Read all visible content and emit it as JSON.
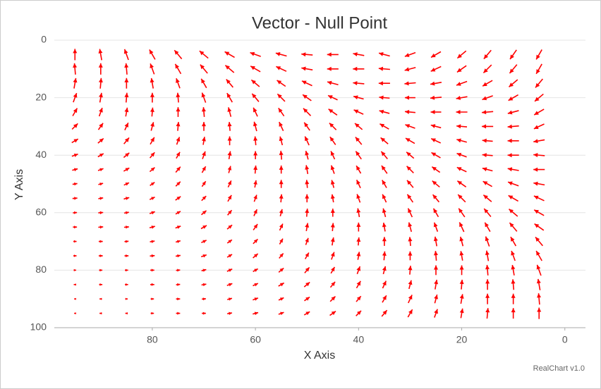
{
  "chart_data": {
    "type": "vector",
    "title": "Vector - Null Point",
    "x_label": "X Axis",
    "y_label": "Y Axis",
    "credit": "RealChart v1.0",
    "color": "#ff0000",
    "grid": true,
    "xlim": [
      99,
      -4
    ],
    "xticks": [
      80,
      60,
      40,
      20,
      0
    ],
    "ylim": [
      0,
      100
    ],
    "yticks": [
      0,
      20,
      40,
      60,
      80,
      100
    ],
    "x": [
      95,
      90,
      85,
      80,
      75,
      70,
      65,
      60,
      55,
      50,
      45,
      40,
      35,
      30,
      25,
      20,
      15,
      10,
      5
    ],
    "y": [
      5,
      10,
      15,
      20,
      25,
      30,
      35,
      40,
      45,
      50,
      55,
      60,
      65,
      70,
      75,
      80,
      85,
      90,
      95
    ],
    "angles": [
      [
        90,
        100,
        110,
        120,
        130,
        140,
        150,
        160,
        165,
        175,
        180,
        170,
        165,
        200,
        210,
        220,
        230,
        235,
        240
      ],
      [
        95,
        90,
        95,
        110,
        120,
        130,
        140,
        150,
        155,
        170,
        180,
        180,
        175,
        195,
        205,
        215,
        225,
        230,
        240
      ],
      [
        80,
        85,
        90,
        100,
        110,
        120,
        130,
        140,
        145,
        155,
        165,
        175,
        180,
        185,
        190,
        200,
        210,
        220,
        230
      ],
      [
        70,
        80,
        85,
        90,
        95,
        110,
        120,
        130,
        135,
        145,
        155,
        165,
        175,
        180,
        185,
        190,
        200,
        210,
        220
      ],
      [
        60,
        70,
        80,
        85,
        90,
        95,
        105,
        115,
        125,
        135,
        145,
        155,
        165,
        175,
        180,
        180,
        185,
        195,
        210
      ],
      [
        45,
        55,
        65,
        75,
        85,
        90,
        95,
        105,
        115,
        125,
        135,
        140,
        150,
        160,
        165,
        175,
        180,
        185,
        205
      ],
      [
        30,
        40,
        50,
        60,
        70,
        80,
        90,
        95,
        105,
        115,
        125,
        130,
        140,
        150,
        155,
        165,
        175,
        180,
        190
      ],
      [
        20,
        30,
        40,
        50,
        60,
        70,
        80,
        90,
        95,
        105,
        115,
        125,
        130,
        140,
        150,
        160,
        175,
        180,
        175
      ],
      [
        15,
        20,
        30,
        40,
        50,
        60,
        75,
        85,
        90,
        100,
        110,
        120,
        125,
        135,
        145,
        155,
        165,
        170,
        180
      ],
      [
        10,
        15,
        25,
        35,
        45,
        55,
        65,
        80,
        90,
        95,
        105,
        115,
        120,
        130,
        140,
        145,
        150,
        160,
        170
      ],
      [
        5,
        10,
        15,
        25,
        35,
        45,
        60,
        70,
        85,
        90,
        100,
        110,
        115,
        125,
        130,
        135,
        140,
        150,
        155
      ],
      [
        5,
        5,
        10,
        20,
        30,
        40,
        50,
        65,
        75,
        85,
        90,
        100,
        105,
        115,
        120,
        125,
        130,
        140,
        150
      ],
      [
        0,
        5,
        5,
        15,
        20,
        30,
        40,
        55,
        65,
        80,
        85,
        90,
        100,
        105,
        110,
        115,
        120,
        130,
        145
      ],
      [
        0,
        0,
        5,
        10,
        15,
        25,
        35,
        45,
        60,
        70,
        80,
        85,
        90,
        95,
        100,
        105,
        110,
        120,
        130
      ],
      [
        0,
        0,
        0,
        5,
        10,
        20,
        30,
        40,
        50,
        60,
        70,
        80,
        85,
        90,
        95,
        100,
        100,
        110,
        120
      ],
      [
        0,
        0,
        0,
        0,
        5,
        15,
        25,
        30,
        40,
        50,
        60,
        70,
        75,
        85,
        90,
        90,
        95,
        100,
        110
      ],
      [
        180,
        0,
        0,
        0,
        5,
        10,
        20,
        25,
        30,
        40,
        50,
        60,
        65,
        75,
        80,
        85,
        90,
        95,
        100
      ],
      [
        180,
        180,
        0,
        0,
        0,
        5,
        15,
        20,
        25,
        35,
        45,
        50,
        60,
        65,
        75,
        80,
        90,
        90,
        95
      ],
      [
        180,
        180,
        180,
        0,
        0,
        0,
        10,
        15,
        20,
        30,
        35,
        45,
        50,
        60,
        70,
        80,
        85,
        90,
        90
      ]
    ],
    "magnitudes": [
      [
        14,
        14,
        14,
        14,
        14,
        14,
        14,
        14,
        14,
        14,
        14,
        14,
        14,
        14,
        14,
        14,
        14,
        14,
        14
      ],
      [
        14,
        14,
        14,
        14,
        14,
        14,
        14,
        14,
        14,
        14,
        14,
        14,
        14,
        14,
        14,
        14,
        14,
        14,
        14
      ],
      [
        13,
        13,
        13,
        13,
        13,
        13,
        13,
        13,
        13,
        14,
        14,
        14,
        14,
        14,
        14,
        14,
        14,
        14,
        14
      ],
      [
        12,
        12,
        12,
        12,
        12,
        13,
        13,
        13,
        13,
        13,
        13,
        13,
        13,
        13,
        14,
        14,
        14,
        14,
        14
      ],
      [
        11,
        11,
        11,
        11,
        12,
        12,
        12,
        12,
        12,
        13,
        13,
        13,
        13,
        13,
        13,
        14,
        14,
        14,
        14
      ],
      [
        10,
        10,
        10,
        11,
        11,
        11,
        11,
        12,
        12,
        12,
        12,
        12,
        13,
        13,
        13,
        13,
        14,
        14,
        14
      ],
      [
        9,
        9,
        10,
        10,
        10,
        10,
        11,
        11,
        11,
        12,
        12,
        12,
        12,
        13,
        13,
        13,
        13,
        14,
        14
      ],
      [
        8,
        8,
        9,
        9,
        9,
        10,
        10,
        10,
        11,
        11,
        11,
        12,
        12,
        12,
        13,
        13,
        13,
        14,
        14
      ],
      [
        7,
        7,
        8,
        8,
        9,
        9,
        9,
        10,
        10,
        11,
        11,
        11,
        12,
        12,
        12,
        13,
        13,
        14,
        14
      ],
      [
        6,
        6,
        7,
        7,
        8,
        8,
        9,
        9,
        10,
        10,
        10,
        11,
        11,
        12,
        12,
        13,
        13,
        14,
        14
      ],
      [
        6,
        6,
        7,
        7,
        8,
        8,
        9,
        9,
        10,
        10,
        10,
        11,
        11,
        12,
        12,
        13,
        13,
        14,
        14
      ],
      [
        5,
        6,
        6,
        7,
        7,
        8,
        8,
        9,
        9,
        10,
        10,
        11,
        11,
        12,
        12,
        13,
        13,
        14,
        14
      ],
      [
        5,
        6,
        6,
        7,
        7,
        8,
        8,
        9,
        9,
        10,
        10,
        11,
        11,
        12,
        12,
        13,
        13,
        14,
        14
      ],
      [
        4,
        5,
        5,
        6,
        6,
        7,
        7,
        8,
        8,
        9,
        10,
        10,
        11,
        11,
        12,
        12,
        13,
        13,
        14
      ],
      [
        4,
        5,
        5,
        6,
        6,
        7,
        7,
        8,
        8,
        9,
        10,
        10,
        11,
        11,
        12,
        12,
        13,
        13,
        14
      ],
      [
        3,
        4,
        4,
        5,
        5,
        6,
        7,
        7,
        8,
        9,
        9,
        10,
        10,
        11,
        12,
        12,
        13,
        13,
        14
      ],
      [
        3,
        4,
        4,
        5,
        5,
        6,
        7,
        7,
        8,
        9,
        9,
        10,
        10,
        11,
        12,
        12,
        13,
        13,
        14
      ],
      [
        2,
        3,
        3,
        4,
        5,
        5,
        6,
        7,
        7,
        8,
        9,
        9,
        10,
        11,
        11,
        12,
        13,
        13,
        14
      ],
      [
        2,
        3,
        3,
        4,
        5,
        5,
        6,
        7,
        7,
        8,
        9,
        9,
        10,
        11,
        11,
        12,
        13,
        13,
        14
      ]
    ]
  }
}
